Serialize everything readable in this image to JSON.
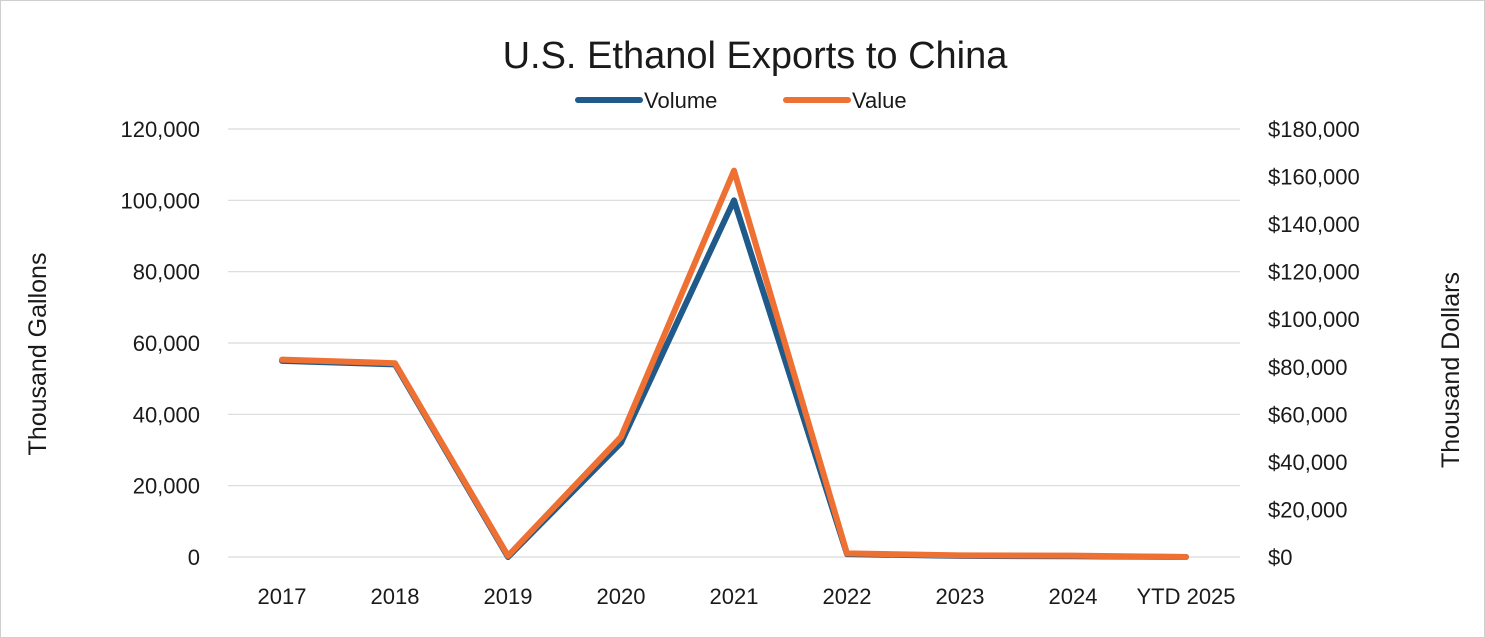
{
  "chart_data": {
    "type": "line",
    "title": "U.S. Ethanol Exports to China",
    "categories": [
      "2017",
      "2018",
      "2019",
      "2020",
      "2021",
      "2022",
      "2023",
      "2024",
      "YTD 2025"
    ],
    "series": [
      {
        "name": "Volume",
        "axis": "left",
        "color": "#1f5a8a",
        "values": [
          55000,
          54000,
          0,
          32000,
          100000,
          800,
          300,
          200,
          0
        ]
      },
      {
        "name": "Value",
        "axis": "right",
        "color": "#ee7032",
        "values": [
          83000,
          81500,
          500,
          50500,
          162500,
          1500,
          700,
          600,
          0
        ]
      }
    ],
    "y_left": {
      "label": "Thousand Gallons",
      "range": [
        0,
        120000
      ],
      "ticks": [
        0,
        20000,
        40000,
        60000,
        80000,
        100000,
        120000
      ],
      "tick_labels": [
        "0",
        "20,000",
        "40,000",
        "60,000",
        "80,000",
        "100,000",
        "120,000"
      ]
    },
    "y_right": {
      "label": "Thousand Dollars",
      "range": [
        0,
        180000
      ],
      "ticks": [
        0,
        20000,
        40000,
        60000,
        80000,
        100000,
        120000,
        140000,
        160000,
        180000
      ],
      "tick_labels": [
        "$0",
        "$20,000",
        "$40,000",
        "$60,000",
        "$80,000",
        "$100,000",
        "$120,000",
        "$140,000",
        "$160,000",
        "$180,000"
      ]
    },
    "legend": {
      "position": "top-center",
      "entries": [
        "Volume",
        "Value"
      ]
    },
    "grid": true
  }
}
